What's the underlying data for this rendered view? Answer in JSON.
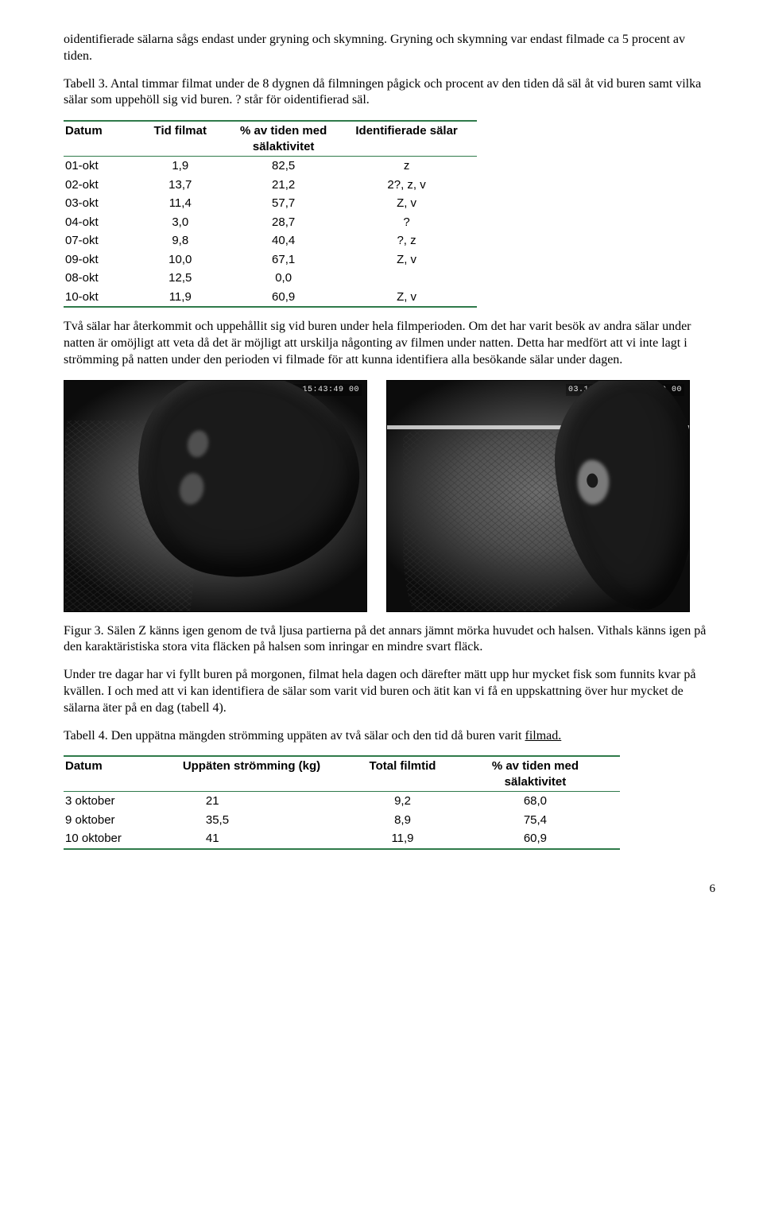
{
  "para_top": "oidentifierade sälarna sågs endast under gryning och skymning. Gryning och skymning var endast filmade ca 5 procent av tiden.",
  "table3": {
    "caption": "Tabell 3. Antal timmar filmat under de 8 dygnen då filmningen pågick och procent av den tiden då säl åt vid buren samt vilka sälar som uppehöll sig vid buren. ? står för oidentifierad säl.",
    "headers": [
      "Datum",
      "Tid filmat",
      "% av tiden med sälaktivitet",
      "Identifierade sälar"
    ],
    "rows": [
      [
        "01-okt",
        "1,9",
        "82,5",
        "z"
      ],
      [
        "02-okt",
        "13,7",
        "21,2",
        "2?, z, v"
      ],
      [
        "03-okt",
        "11,4",
        "57,7",
        "Z, v"
      ],
      [
        "04-okt",
        "3,0",
        "28,7",
        "?"
      ],
      [
        "07-okt",
        "9,8",
        "40,4",
        "?, z"
      ],
      [
        "09-okt",
        "10,0",
        "67,1",
        "Z, v"
      ],
      [
        "08-okt",
        "12,5",
        "0,0",
        ""
      ],
      [
        "10-okt",
        "11,9",
        "60,9",
        "Z, v"
      ]
    ],
    "border_color": "#2f7a4a",
    "header_font": "Arial",
    "body_font": "Arial",
    "fontsize_pt": 11
  },
  "para_mid": "Två sälar har återkommit och uppehållit sig vid buren under hela filmperioden. Om det har varit besök av andra sälar under natten är omöjligt att veta då det är möjligt att urskilja någonting av filmen under natten. Detta har medfört att vi inte lagt i strömming på natten under den perioden vi filmade för att kunna identifiera alla besökande sälar under dagen.",
  "figure3": {
    "left_timestamp": "02.10.2004 15:43:49 00",
    "right_timestamp": "03.10.2004 12:57:40 00",
    "caption": "Figur 3. Sälen Z känns igen genom de två ljusa partierna på det annars jämnt mörka huvudet och halsen. Vithals känns igen på den karaktäristiska stora vita fläcken på halsen som inringar en mindre svart fläck.",
    "image_desc": "Two grayscale underwater stills of seals at a net cage; left shows seal Z with two pale patches; right shows seal 'Vithals' with large white neck patch around a dark spot."
  },
  "para_after_fig": "Under tre dagar har vi fyllt buren på morgonen, filmat hela dagen och därefter mätt upp hur mycket fisk som funnits kvar på kvällen. I och med att vi kan identifiera de sälar som varit vid buren och ätit kan vi få en uppskattning över hur mycket de sälarna äter på en dag (tabell 4).",
  "table4": {
    "caption_lead": "Tabell 4. Den uppätna mängden strömming uppäten av två sälar och den tid då buren varit ",
    "caption_underlined": "filmad.",
    "headers": [
      "Datum",
      "Uppäten strömming (kg)",
      "Total filmtid",
      "% av tiden med sälaktivitet"
    ],
    "rows": [
      [
        "3 oktober",
        "21",
        "9,2",
        "68,0"
      ],
      [
        "9 oktober",
        "35,5",
        "8,9",
        "75,4"
      ],
      [
        "10 oktober",
        "41",
        "11,9",
        "60,9"
      ]
    ],
    "border_color": "#2f7a4a"
  },
  "page_number": "6",
  "colors": {
    "text": "#000000",
    "background": "#ffffff",
    "table_rule": "#2f7a4a"
  },
  "typography": {
    "body_font": "Times New Roman",
    "body_size_pt": 12,
    "table_font": "Arial",
    "table_size_pt": 11
  }
}
